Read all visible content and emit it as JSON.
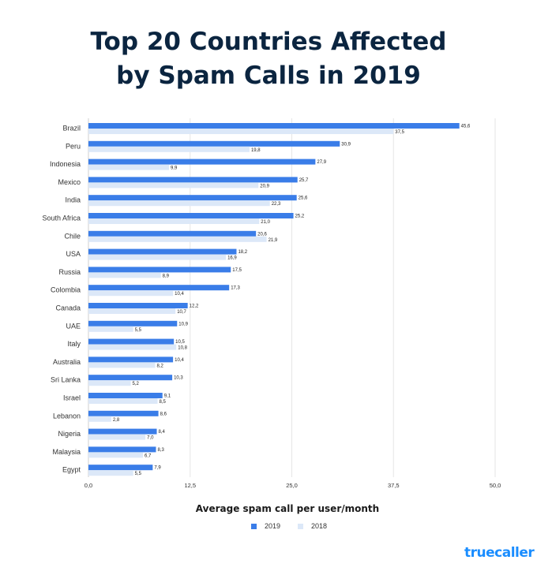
{
  "title_line1": "Top 20 Countries Affected",
  "title_line2": "by Spam Calls in 2019",
  "logo_text": "truecaller",
  "chart_data": {
    "type": "bar",
    "orientation": "horizontal",
    "title": "Top 20 Countries Affected by Spam Calls in 2019",
    "xlabel": "Average spam call per user/month",
    "ylabel": "",
    "xlim": [
      0,
      50
    ],
    "x_ticks": [
      "0,0",
      "12,5",
      "25,0",
      "37,5",
      "50,0"
    ],
    "x_tick_values": [
      0,
      12.5,
      25,
      37.5,
      50
    ],
    "grid": true,
    "legend_position": "bottom-center",
    "categories": [
      "Brazil",
      "Peru",
      "Indonesia",
      "Mexico",
      "India",
      "South Africa",
      "Chile",
      "USA",
      "Russia",
      "Colombia",
      "Canada",
      "UAE",
      "Italy",
      "Australia",
      "Sri Lanka",
      "Israel",
      "Lebanon",
      "Nigeria",
      "Malaysia",
      "Egypt"
    ],
    "series": [
      {
        "name": "2019",
        "color": "#3a7de8",
        "values": [
          45.6,
          30.9,
          27.9,
          25.7,
          25.6,
          25.2,
          20.6,
          18.2,
          17.5,
          17.3,
          12.2,
          10.9,
          10.5,
          10.4,
          10.3,
          9.1,
          8.6,
          8.4,
          8.3,
          7.9
        ],
        "labels": [
          "45,6",
          "30,9",
          "27,9",
          "25,7",
          "25,6",
          "25,2",
          "20,6",
          "18,2",
          "17,5",
          "17,3",
          "12,2",
          "10,9",
          "10,5",
          "10,4",
          "10,3",
          "9,1",
          "8,6",
          "8,4",
          "8,3",
          "7,9"
        ]
      },
      {
        "name": "2018",
        "color": "#dce8f8",
        "values": [
          37.5,
          19.8,
          9.9,
          20.9,
          22.3,
          21.0,
          21.9,
          16.9,
          8.9,
          10.4,
          10.7,
          5.5,
          10.8,
          8.2,
          5.2,
          8.5,
          2.8,
          7.0,
          6.7,
          5.5
        ],
        "labels": [
          "37,5",
          "19,8",
          "9,9",
          "20,9",
          "22,3",
          "21,0",
          "21,9",
          "16,9",
          "8,9",
          "10,4",
          "10,7",
          "5,5",
          "10,8",
          "8,2",
          "5,2",
          "8,5",
          "2,8",
          "7,0",
          "6,7",
          "5,5"
        ]
      }
    ]
  }
}
